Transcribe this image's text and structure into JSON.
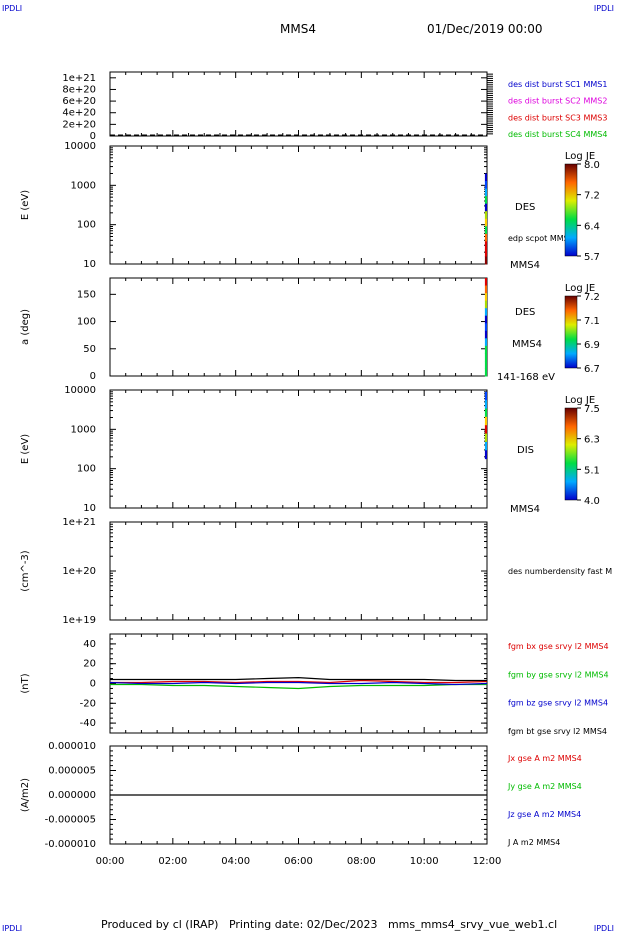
{
  "header": {
    "corner_tl": "IPDLI",
    "corner_tr": "IPDLI",
    "corner_bl": "IPDLI",
    "corner_br": "IPDLI",
    "spacecraft": "MMS4",
    "datetime": "01/Dec/2019 00:00"
  },
  "footer": {
    "text": "Produced by cl (IRAP)   Printing date: 02/Dec/2023   mms_mms4_srvy_vue_web1.cl"
  },
  "chart_data": [
    {
      "type": "line",
      "panel": "density-spacecraft",
      "ylabel": "",
      "ylim": [
        0,
        1.1e+21
      ],
      "yticks": [
        "0",
        "2e+20",
        "4e+20",
        "6e+20",
        "8e+20",
        "1e+21"
      ],
      "series": [
        {
          "name": "des dist burst SC1 MMS1",
          "color": "#0000cc"
        },
        {
          "name": "des dist burst SC2 MMS2",
          "color": "#dd00dd"
        },
        {
          "name": "des dist burst SC3 MMS3",
          "color": "#dd0000"
        },
        {
          "name": "des dist burst SC4 MMS4",
          "color": "#00bb00"
        }
      ],
      "dashed_baseline": 0
    },
    {
      "type": "heatmap",
      "panel": "des-energy",
      "ylabel": "E (eV)",
      "yscale": "log",
      "yticks": [
        "10",
        "100",
        "1000",
        "10000"
      ],
      "side_labels": [
        "DES",
        "edp scpot MMS4",
        "MMS4"
      ],
      "colorbar": {
        "label": "Log JE",
        "ticks": [
          "8.0",
          "7.2",
          "6.4",
          "5.7"
        ]
      },
      "time_range": [
        "11:56",
        "12:00"
      ]
    },
    {
      "type": "heatmap",
      "panel": "des-pitch-angle",
      "ylabel": "a (deg)",
      "ylim": [
        0,
        180
      ],
      "yticks": [
        "0",
        "50",
        "100",
        "150"
      ],
      "side_labels": [
        "DES",
        "MMS4",
        "141-168 eV"
      ],
      "colorbar": {
        "label": "Log JE",
        "ticks": [
          "7.2",
          "7.1",
          "6.9",
          "6.7"
        ]
      },
      "time_range": [
        "11:56",
        "12:00"
      ]
    },
    {
      "type": "heatmap",
      "panel": "dis-energy",
      "ylabel": "E (eV)",
      "yscale": "log",
      "yticks": [
        "10",
        "100",
        "1000",
        "10000"
      ],
      "side_labels": [
        "DIS",
        "MMS4"
      ],
      "colorbar": {
        "label": "Log JE",
        "ticks": [
          "7.5",
          "6.3",
          "5.1",
          "4.0"
        ]
      },
      "time_range": [
        "11:56",
        "12:00"
      ]
    },
    {
      "type": "line",
      "panel": "density",
      "ylabel": "(cm^-3)",
      "yscale": "log",
      "yticks": [
        "1e+19",
        "1e+20",
        "1e+21"
      ],
      "series": [
        {
          "name": "des numberdensity fast M",
          "color": "#000000"
        }
      ]
    },
    {
      "type": "line",
      "panel": "magnetic-field",
      "ylabel": "(nT)",
      "ylim": [
        -50,
        50
      ],
      "yticks": [
        "-40",
        "-20",
        "0",
        "20",
        "40"
      ],
      "series": [
        {
          "name": "fgm bx gse srvy l2 MMS4",
          "color": "#dd0000",
          "x": [
            "00:00",
            "01:00",
            "02:00",
            "03:00",
            "04:00",
            "05:00",
            "06:00",
            "07:00",
            "08:00",
            "09:00",
            "10:00",
            "11:00",
            "12:00"
          ],
          "values": [
            1,
            1,
            2,
            2,
            1,
            2,
            2,
            1,
            3,
            2,
            1,
            1,
            2
          ]
        },
        {
          "name": "fgm by gse srvy l2 MMS4",
          "color": "#00bb00",
          "x": [
            "00:00",
            "01:00",
            "02:00",
            "03:00",
            "04:00",
            "05:00",
            "06:00",
            "07:00",
            "08:00",
            "09:00",
            "10:00",
            "11:00",
            "12:00"
          ],
          "values": [
            -1,
            -1,
            -2,
            -2,
            -3,
            -4,
            -5,
            -3,
            -2,
            -2,
            -2,
            -1,
            -1
          ]
        },
        {
          "name": "fgm bz gse srvy l2 MMS4",
          "color": "#0000cc",
          "x": [
            "00:00",
            "01:00",
            "02:00",
            "03:00",
            "04:00",
            "05:00",
            "06:00",
            "07:00",
            "08:00",
            "09:00",
            "10:00",
            "11:00",
            "12:00"
          ],
          "values": [
            1,
            0,
            0,
            1,
            0,
            1,
            1,
            0,
            0,
            1,
            0,
            -1,
            0
          ]
        },
        {
          "name": "fgm bt gse srvy l2 MMS4",
          "color": "#000000",
          "x": [
            "00:00",
            "01:00",
            "02:00",
            "03:00",
            "04:00",
            "05:00",
            "06:00",
            "07:00",
            "08:00",
            "09:00",
            "10:00",
            "11:00",
            "12:00"
          ],
          "values": [
            4,
            4,
            4,
            4,
            4,
            5,
            6,
            4,
            4,
            4,
            4,
            3,
            3
          ]
        }
      ]
    },
    {
      "type": "line",
      "panel": "current-density",
      "ylabel": "(A/m2)",
      "ylim": [
        -1e-05,
        1e-05
      ],
      "yticks": [
        "-0.000010",
        "-0.000005",
        "0.000000",
        "0.000005",
        "0.000010"
      ],
      "xlabel": "",
      "xticks": [
        "00:00",
        "02:00",
        "04:00",
        "06:00",
        "08:00",
        "10:00",
        "12:00"
      ],
      "series": [
        {
          "name": "Jx gse A m2 MMS4",
          "color": "#dd0000"
        },
        {
          "name": "Jy gse A m2 MMS4",
          "color": "#00bb00"
        },
        {
          "name": "Jz gse A m2 MMS4",
          "color": "#0000cc"
        },
        {
          "name": "J A m2 MMS4",
          "color": "#000000",
          "constant_value": 0
        }
      ]
    }
  ]
}
